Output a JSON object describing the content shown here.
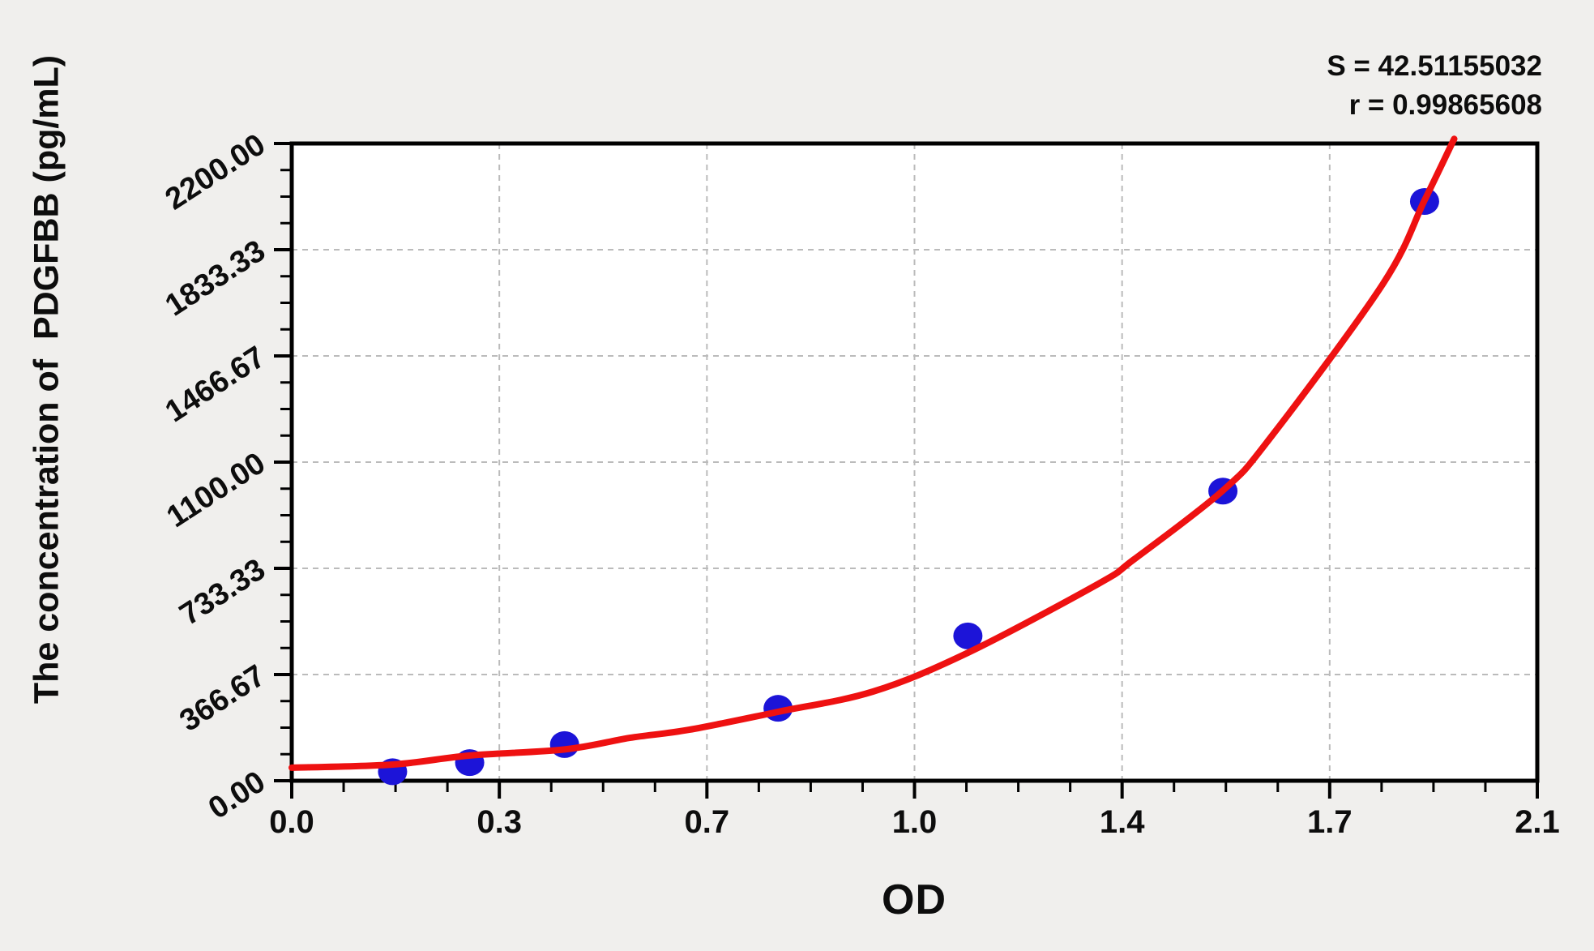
{
  "page": {
    "background": "#f0efed"
  },
  "annotation": {
    "s_line": "S = 42.51155032",
    "r_line": "r = 0.99865608"
  },
  "chart_data": {
    "type": "scatter",
    "title": "",
    "xlabel": "OD",
    "ylabel": "The concentration of  PDGFBB (pg/mL)",
    "xlim": [
      0,
      2.1
    ],
    "ylim": [
      0,
      2200
    ],
    "grid": "dashed gray gridlines at interior major ticks",
    "legend_position": "none",
    "minor_ticks_between_majors": 3,
    "x_ticks": [
      {
        "label": "0.0",
        "value": 0.0
      },
      {
        "label": "0.3",
        "value": 0.35
      },
      {
        "label": "0.7",
        "value": 0.7
      },
      {
        "label": "1.0",
        "value": 1.05
      },
      {
        "label": "1.4",
        "value": 1.4
      },
      {
        "label": "1.7",
        "value": 1.75
      },
      {
        "label": "2.1",
        "value": 2.1
      }
    ],
    "y_ticks": [
      {
        "label": "0.00",
        "value": 0
      },
      {
        "label": "366.67",
        "value": 366.67
      },
      {
        "label": "733.33",
        "value": 733.33
      },
      {
        "label": "1100.00",
        "value": 1100
      },
      {
        "label": "1466.67",
        "value": 1466.67
      },
      {
        "label": "1833.33",
        "value": 1833.33
      },
      {
        "label": "2200.00",
        "value": 2200
      }
    ],
    "series": [
      {
        "name": "standard-points",
        "type": "scatter",
        "color": "#1c14d8",
        "points": [
          {
            "od": 0.17,
            "conc": 31.25
          },
          {
            "od": 0.3,
            "conc": 62.5
          },
          {
            "od": 0.46,
            "conc": 125
          },
          {
            "od": 0.82,
            "conc": 250
          },
          {
            "od": 1.14,
            "conc": 500
          },
          {
            "od": 1.57,
            "conc": 1000
          },
          {
            "od": 1.91,
            "conc": 2000
          }
        ]
      },
      {
        "name": "fitted-curve",
        "type": "line",
        "color": "#ee1111",
        "points": [
          {
            "od": 0.0,
            "conc": 45
          },
          {
            "od": 0.17,
            "conc": 56
          },
          {
            "od": 0.3,
            "conc": 87
          },
          {
            "od": 0.46,
            "conc": 108
          },
          {
            "od": 0.57,
            "conc": 148
          },
          {
            "od": 0.67,
            "conc": 176
          },
          {
            "od": 0.82,
            "conc": 238
          },
          {
            "od": 0.98,
            "conc": 308
          },
          {
            "od": 1.14,
            "conc": 442
          },
          {
            "od": 1.36,
            "conc": 680
          },
          {
            "od": 1.42,
            "conc": 764
          },
          {
            "od": 1.57,
            "conc": 1002
          },
          {
            "od": 1.65,
            "conc": 1184
          },
          {
            "od": 1.84,
            "conc": 1716
          },
          {
            "od": 1.91,
            "conc": 2004
          },
          {
            "od": 1.96,
            "conc": 2216
          }
        ]
      }
    ],
    "fit_stats": {
      "S": "42.51155032",
      "r": "0.99865608"
    }
  },
  "style": {
    "page_bg": "#f0efed",
    "plot_bg": "#ffffff",
    "axis_color": "#000000",
    "grid_color": "#bbbbbb",
    "text_color": "#0d0d0d",
    "point_color": "#1c14d8",
    "curve_color": "#ee1111"
  }
}
